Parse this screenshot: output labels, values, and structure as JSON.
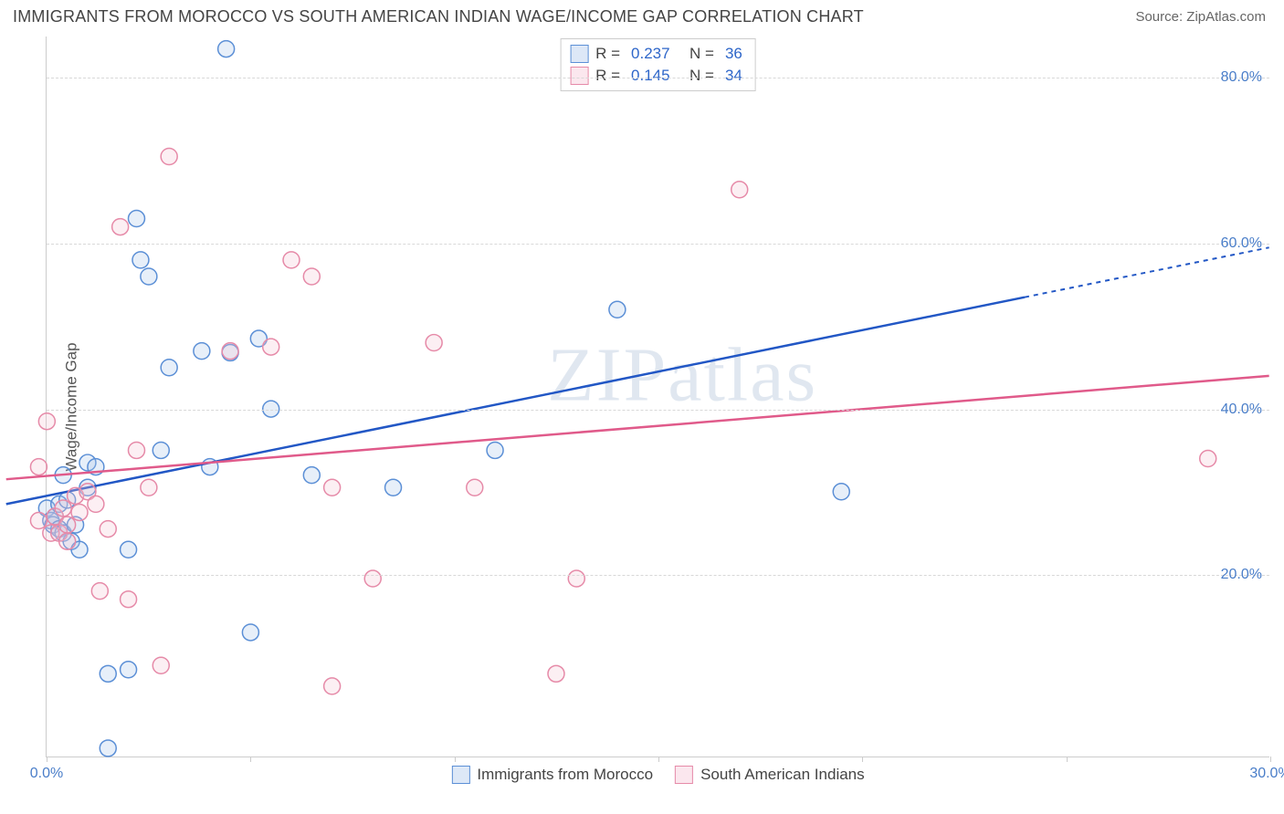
{
  "header": {
    "title": "IMMIGRANTS FROM MOROCCO VS SOUTH AMERICAN INDIAN WAGE/INCOME GAP CORRELATION CHART",
    "source": "Source: ZipAtlas.com"
  },
  "chart": {
    "type": "scatter",
    "ylabel": "Wage/Income Gap",
    "watermark": "ZIPatlas",
    "background_color": "#ffffff",
    "grid_color": "#d8d8d8",
    "axis_color": "#cccccc",
    "tick_label_color": "#4a7ec9",
    "xlim": [
      0,
      30
    ],
    "ylim": [
      -2,
      85
    ],
    "xticks": [
      0,
      5,
      10,
      15,
      20,
      25,
      30
    ],
    "xtick_labels": {
      "0": "0.0%",
      "30": "30.0%"
    },
    "yticks": [
      20,
      40,
      60,
      80
    ],
    "ytick_labels": {
      "20": "20.0%",
      "40": "40.0%",
      "60": "60.0%",
      "80": "80.0%"
    },
    "marker_radius": 9,
    "marker_stroke_width": 1.5,
    "marker_fill_opacity": 0.28,
    "trend_stroke_width": 2.5,
    "series": [
      {
        "name": "Immigrants from Morocco",
        "color_stroke": "#5b8fd6",
        "color_fill": "#a9c6eb",
        "trend_color": "#2257c5",
        "R": "0.237",
        "N": "36",
        "trend": {
          "x1": -1,
          "y1": 28.5,
          "x2": 24,
          "y2": 53.5,
          "x2_dash": 30,
          "y2_dash": 59.5
        },
        "points": [
          [
            0.0,
            28.0
          ],
          [
            0.1,
            26.5
          ],
          [
            0.15,
            26.0
          ],
          [
            0.2,
            27.0
          ],
          [
            0.3,
            25.5
          ],
          [
            0.3,
            28.5
          ],
          [
            0.4,
            25.0
          ],
          [
            0.5,
            29.0
          ],
          [
            0.4,
            32.0
          ],
          [
            0.6,
            24.0
          ],
          [
            0.7,
            26.0
          ],
          [
            0.8,
            23.0
          ],
          [
            1.0,
            33.5
          ],
          [
            1.0,
            30.5
          ],
          [
            1.2,
            33.0
          ],
          [
            1.5,
            -1.0
          ],
          [
            1.5,
            8.0
          ],
          [
            2.0,
            8.5
          ],
          [
            2.0,
            23.0
          ],
          [
            2.2,
            63.0
          ],
          [
            2.3,
            58.0
          ],
          [
            2.5,
            56.0
          ],
          [
            2.8,
            35.0
          ],
          [
            3.0,
            45.0
          ],
          [
            3.8,
            47.0
          ],
          [
            4.0,
            33.0
          ],
          [
            4.4,
            83.5
          ],
          [
            4.5,
            46.8
          ],
          [
            5.0,
            13.0
          ],
          [
            5.2,
            48.5
          ],
          [
            5.5,
            40.0
          ],
          [
            6.5,
            32.0
          ],
          [
            8.5,
            30.5
          ],
          [
            11.0,
            35.0
          ],
          [
            14.0,
            52.0
          ],
          [
            19.5,
            30.0
          ]
        ]
      },
      {
        "name": "South American Indians",
        "color_stroke": "#e68aa8",
        "color_fill": "#f6c4d4",
        "trend_color": "#e05a8a",
        "R": "0.145",
        "N": "34",
        "trend": {
          "x1": -1,
          "y1": 31.5,
          "x2": 30,
          "y2": 44.0,
          "x2_dash": 30,
          "y2_dash": 44.0
        },
        "points": [
          [
            -0.2,
            33.0
          ],
          [
            -0.2,
            26.5
          ],
          [
            0.0,
            38.5
          ],
          [
            0.1,
            25.0
          ],
          [
            0.2,
            27.0
          ],
          [
            0.3,
            25.0
          ],
          [
            0.4,
            28.0
          ],
          [
            0.5,
            26.0
          ],
          [
            0.5,
            24.0
          ],
          [
            0.7,
            29.5
          ],
          [
            0.8,
            27.5
          ],
          [
            1.0,
            30.0
          ],
          [
            1.2,
            28.5
          ],
          [
            1.3,
            18.0
          ],
          [
            1.5,
            25.5
          ],
          [
            1.8,
            62.0
          ],
          [
            2.0,
            17.0
          ],
          [
            2.2,
            35.0
          ],
          [
            2.5,
            30.5
          ],
          [
            2.8,
            9.0
          ],
          [
            3.0,
            70.5
          ],
          [
            4.5,
            47.0
          ],
          [
            5.5,
            47.5
          ],
          [
            6.0,
            58.0
          ],
          [
            6.5,
            56.0
          ],
          [
            7.0,
            30.5
          ],
          [
            7.0,
            6.5
          ],
          [
            8.0,
            19.5
          ],
          [
            9.5,
            48.0
          ],
          [
            10.5,
            30.5
          ],
          [
            12.5,
            8.0
          ],
          [
            13.0,
            19.5
          ],
          [
            17.0,
            66.5
          ],
          [
            28.5,
            34.0
          ]
        ]
      }
    ],
    "legend_bottom": [
      {
        "label": "Immigrants from Morocco",
        "stroke": "#5b8fd6",
        "fill": "#a9c6eb"
      },
      {
        "label": "South American Indians",
        "stroke": "#e68aa8",
        "fill": "#f6c4d4"
      }
    ]
  }
}
